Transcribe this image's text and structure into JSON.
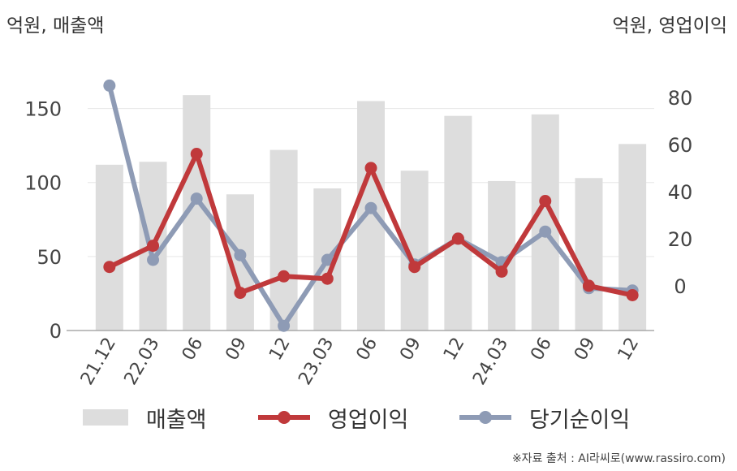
{
  "units": {
    "left": "억원, 매출액",
    "right": "억원, 영업이익"
  },
  "source": "※자료 출처 : AI라씨로(www.rassiro.com)",
  "colors": {
    "bar": "#dddddd",
    "operating_profit": "#c0393b",
    "net_income": "#8e9bb5",
    "axis": "#aaaaaa",
    "grid": "#e6e6e6"
  },
  "chart_data": {
    "type": "bar",
    "categories": [
      "21.12",
      "22.03",
      "06",
      "09",
      "12",
      "23.03",
      "06",
      "09",
      "12",
      "24.03",
      "06",
      "09",
      "12"
    ],
    "y_left": {
      "ylim": [
        0,
        175
      ],
      "ticks": [
        0,
        50,
        100,
        150
      ]
    },
    "y_right": {
      "ylim": [
        -19,
        91
      ],
      "ticks": [
        0,
        20,
        40,
        60,
        80
      ]
    },
    "grid": true,
    "legend_position": "bottom",
    "series": [
      {
        "name": "매출액",
        "type": "bar",
        "axis": "left",
        "values": [
          112,
          114,
          159,
          92,
          122,
          96,
          155,
          108,
          145,
          101,
          146,
          103,
          126
        ]
      },
      {
        "name": "영업이익",
        "type": "line",
        "axis": "right",
        "values": [
          8,
          17,
          56,
          -3,
          4,
          3,
          50,
          8,
          20,
          6,
          36,
          0,
          -4
        ]
      },
      {
        "name": "당기순이익",
        "type": "line",
        "axis": "right",
        "values": [
          85,
          11,
          37,
          13,
          -17,
          11,
          33,
          9,
          20,
          10,
          23,
          -1,
          -2
        ]
      }
    ]
  }
}
